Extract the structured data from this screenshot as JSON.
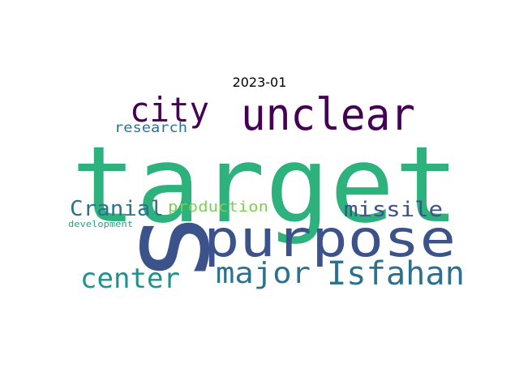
{
  "chart_data": {
    "type": "wordcloud",
    "title": "2023-01",
    "words": [
      {
        "text": "target",
        "color": "#2db27d"
      },
      {
        "text": "purpose",
        "color": "#3b528b"
      },
      {
        "text": "unclear",
        "color": "#440154"
      },
      {
        "text": "city",
        "color": "#440154"
      },
      {
        "text": "Isfahan",
        "color": "#2c728e"
      },
      {
        "text": "major",
        "color": "#2c728e"
      },
      {
        "text": "center",
        "color": "#21918c"
      },
      {
        "text": "Cranial",
        "color": "#2c728e"
      },
      {
        "text": "missile",
        "color": "#3b528b"
      },
      {
        "text": "production",
        "color": "#7ad151"
      },
      {
        "text": "research",
        "color": "#2c728e"
      },
      {
        "text": "development",
        "color": "#21a585"
      },
      {
        "text": "s",
        "color": "#3b528b"
      }
    ]
  }
}
